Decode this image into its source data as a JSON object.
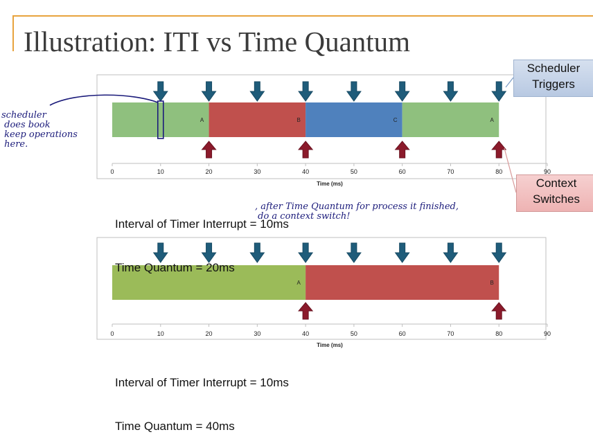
{
  "title": "Illustration: ITI vs Time Quantum",
  "callouts": {
    "scheduler": "Scheduler Triggers",
    "context": "Context Switches"
  },
  "colors": {
    "A_green": "#8fc07e",
    "A_green2": "#9bbb59",
    "B_red": "#c0504d",
    "C_blue": "#4f81bd",
    "trigger_arrow": "#1f5c7a",
    "switch_arrow": "#8b1a2b",
    "accent": "#e8a33d"
  },
  "chart_data": [
    {
      "type": "timeline",
      "segments": [
        {
          "label": "A",
          "start": 0,
          "end": 20,
          "color": "#8fc07e"
        },
        {
          "label": "B",
          "start": 20,
          "end": 40,
          "color": "#c0504d"
        },
        {
          "label": "C",
          "start": 40,
          "end": 60,
          "color": "#4f81bd"
        },
        {
          "label": "A",
          "start": 60,
          "end": 80,
          "color": "#8fc07e"
        }
      ],
      "scheduler_triggers": [
        10,
        20,
        30,
        40,
        50,
        60,
        70,
        80
      ],
      "context_switches": [
        20,
        40,
        60,
        80
      ],
      "xticks": [
        0,
        10,
        20,
        30,
        40,
        50,
        60,
        70,
        80,
        90
      ],
      "xlim": [
        0,
        90
      ],
      "xlabel": "Time (ms)",
      "highlight": 10
    },
    {
      "type": "timeline",
      "segments": [
        {
          "label": "A",
          "start": 0,
          "end": 40,
          "color": "#9bbb59"
        },
        {
          "label": "B",
          "start": 40,
          "end": 80,
          "color": "#c0504d"
        }
      ],
      "scheduler_triggers": [
        10,
        20,
        30,
        40,
        50,
        60,
        70,
        80
      ],
      "context_switches": [
        40,
        80
      ],
      "xticks": [
        0,
        10,
        20,
        30,
        40,
        50,
        60,
        70,
        80,
        90
      ],
      "xlim": [
        0,
        90
      ],
      "xlabel": "Time (ms)"
    }
  ],
  "info1": {
    "iti": "Interval of Timer Interrupt = 10ms",
    "quantum": "Time Quantum = 20ms"
  },
  "info2": {
    "iti": "Interval of Timer Interrupt = 10ms",
    "quantum": "Time Quantum = 40ms"
  },
  "handwriting": {
    "left_note": "scheduler\n does book\n keep operations\n here.",
    "right_note": ", after Time Quantum for process it finished,\n do a context switch!"
  }
}
